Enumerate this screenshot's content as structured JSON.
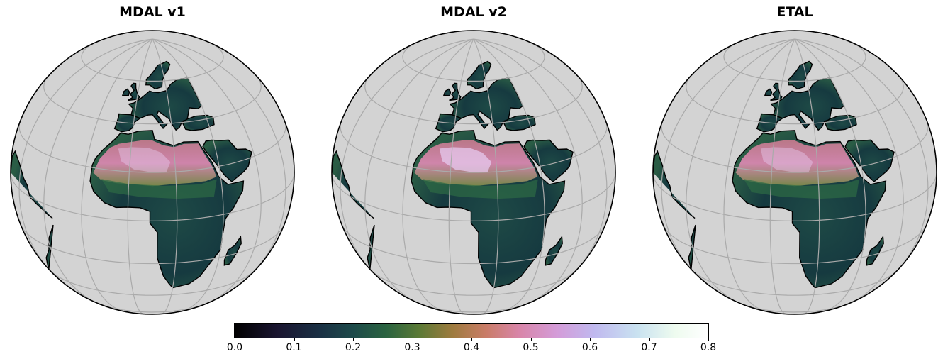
{
  "panels": [
    {
      "title": "MDAL v1"
    },
    {
      "title": "MDAL v2"
    },
    {
      "title": "ETAL"
    }
  ],
  "colorbar": {
    "ticks": [
      "0.0",
      "0.1",
      "0.2",
      "0.3",
      "0.4",
      "0.5",
      "0.6",
      "0.7",
      "0.8"
    ],
    "range": [
      0,
      0.8
    ],
    "colormap": "cubehelix-like"
  },
  "colors": {
    "ocean": "#d3d3d3",
    "land_low": "#16313d",
    "land_mid": "#2e6b45",
    "land_high": "#d884a6",
    "land_peak": "#e6c9ee",
    "grid": "#aaaaaa"
  }
}
